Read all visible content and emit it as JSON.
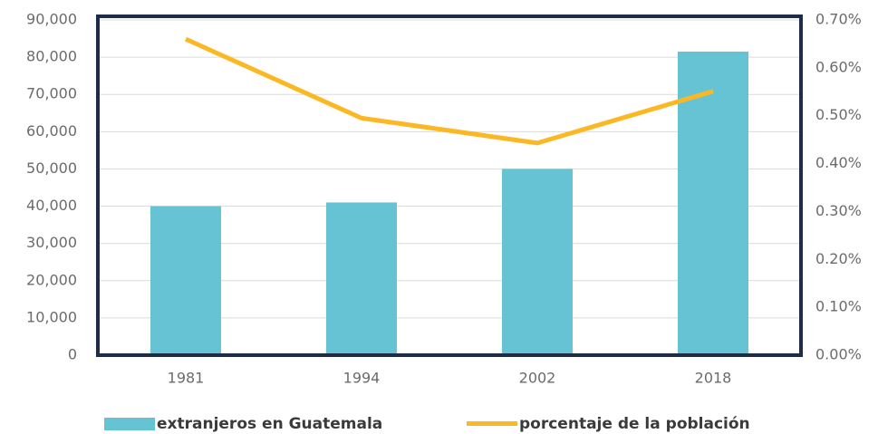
{
  "chart_data": {
    "type": "bar",
    "categories": [
      "1981",
      "1994",
      "2002",
      "2018"
    ],
    "series": [
      {
        "name": "extranjeros en Guatemala",
        "color": "#66c3d3",
        "type": "bar",
        "values": [
          40000,
          41000,
          50000,
          81500
        ]
      },
      {
        "name": "porcentaje de la población",
        "color": "#fbb824",
        "type": "line",
        "axis": "y2",
        "values": [
          0.66,
          0.495,
          0.443,
          0.551
        ]
      }
    ],
    "ylim": [
      0,
      90000
    ],
    "yticks": [
      0,
      {
        "value": 10000,
        "label": "10,000"
      },
      {
        "value": 20000,
        "label": "20,000"
      },
      {
        "value": 30000,
        "label": "30,000"
      },
      {
        "value": 40000,
        "label": "40,000"
      },
      {
        "value": 50000,
        "label": "50,000"
      },
      {
        "value": 60000,
        "label": "60,000"
      },
      {
        "value": 70000,
        "label": "70,000"
      },
      {
        "value": 80000,
        "label": "80,000"
      },
      {
        "value": 90000,
        "label": "90,000"
      }
    ],
    "y2lim": [
      0,
      0.7
    ],
    "y2ticks": [
      {
        "value": 0,
        "label": "0.00%"
      },
      {
        "value": 0.1,
        "label": "0.10%"
      },
      {
        "value": 0.2,
        "label": "0.20%"
      },
      {
        "value": 0.3,
        "label": "0.30%"
      },
      {
        "value": 0.4,
        "label": "0.40%"
      },
      {
        "value": 0.5,
        "label": "0.50%"
      },
      {
        "value": 0.6,
        "label": "0.60%"
      },
      {
        "value": 0.7,
        "label": "0.70%"
      }
    ],
    "grid": true,
    "legend": "bottom"
  }
}
